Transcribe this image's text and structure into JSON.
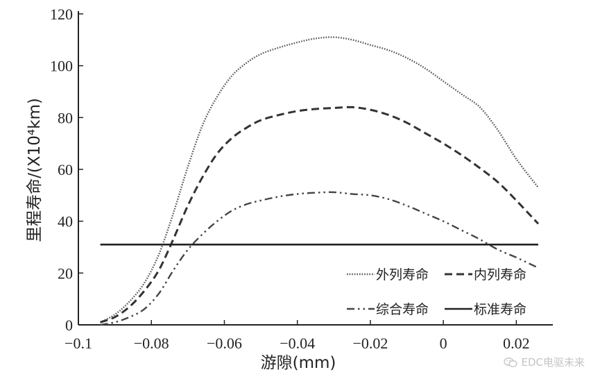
{
  "chart_data": {
    "type": "line",
    "ylabel": "里程寿命/(X10⁴km)",
    "xlabel": "游隙(mm)",
    "xlim": [
      -0.1,
      0.03
    ],
    "ylim": [
      0,
      120
    ],
    "xticks": [
      -0.1,
      -0.08,
      -0.06,
      -0.04,
      -0.02,
      0,
      0.02
    ],
    "xtick_labels": [
      "−0.1",
      "−0.08",
      "−0.06",
      "−0.04",
      "−0.02",
      "0",
      "0.02"
    ],
    "yticks": [
      0,
      20,
      40,
      60,
      80,
      100,
      120
    ],
    "ytick_labels": [
      "0",
      "20",
      "40",
      "60",
      "80",
      "100",
      "120"
    ],
    "legend_position": "bottom-right",
    "series": [
      {
        "name": "外列寿命",
        "style": "dotted",
        "color": "#555555",
        "x": [
          -0.094,
          -0.09,
          -0.086,
          -0.082,
          -0.078,
          -0.074,
          -0.07,
          -0.066,
          -0.062,
          -0.058,
          -0.054,
          -0.05,
          -0.045,
          -0.04,
          -0.035,
          -0.03,
          -0.025,
          -0.02,
          -0.015,
          -0.01,
          -0.005,
          0,
          0.005,
          0.01,
          0.015,
          0.02,
          0.026
        ],
        "y": [
          1,
          4,
          9,
          16,
          27,
          43,
          61,
          77,
          88,
          96,
          101,
          104.5,
          107,
          109,
          110.5,
          111,
          110,
          108,
          106,
          103,
          99,
          94,
          89,
          84,
          75,
          64,
          53
        ]
      },
      {
        "name": "内列寿命",
        "style": "dashed",
        "color": "#333333",
        "x": [
          -0.094,
          -0.09,
          -0.086,
          -0.082,
          -0.078,
          -0.074,
          -0.07,
          -0.066,
          -0.062,
          -0.058,
          -0.054,
          -0.05,
          -0.045,
          -0.04,
          -0.035,
          -0.03,
          -0.025,
          -0.02,
          -0.015,
          -0.01,
          -0.005,
          0,
          0.005,
          0.01,
          0.015,
          0.02,
          0.026
        ],
        "y": [
          1,
          3,
          7,
          13,
          21,
          33,
          46,
          57,
          66,
          72,
          76,
          79,
          81,
          82.5,
          83.3,
          83.7,
          84,
          83,
          81,
          78,
          74,
          70,
          65.5,
          60.5,
          55,
          48,
          39
        ]
      },
      {
        "name": "综合寿命",
        "style": "dashdotdot",
        "color": "#444444",
        "x": [
          -0.094,
          -0.09,
          -0.086,
          -0.082,
          -0.078,
          -0.074,
          -0.07,
          -0.066,
          -0.062,
          -0.058,
          -0.054,
          -0.05,
          -0.045,
          -0.04,
          -0.035,
          -0.03,
          -0.025,
          -0.02,
          -0.015,
          -0.01,
          -0.005,
          0,
          0.005,
          0.01,
          0.015,
          0.02,
          0.026
        ],
        "y": [
          0,
          1,
          3,
          6,
          12,
          21,
          29,
          35,
          40,
          44,
          46.5,
          48,
          49.5,
          50.5,
          51,
          51.2,
          50.5,
          50,
          48.5,
          46,
          43,
          40,
          36.5,
          33,
          29,
          26,
          22
        ]
      },
      {
        "name": "标准寿命",
        "style": "solid",
        "color": "#222222",
        "x": [
          -0.094,
          0.026
        ],
        "y": [
          31,
          31
        ]
      }
    ]
  },
  "watermark": {
    "text": "EDC电驱未来",
    "icon": "wechat-icon"
  }
}
